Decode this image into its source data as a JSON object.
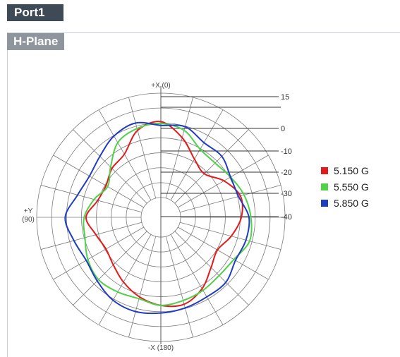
{
  "port_label": "Port1",
  "plane_label": "H-Plane",
  "chart_data": {
    "type": "polar",
    "angle_labels": {
      "top": "+X (0)",
      "left_line1": "+Y",
      "left_line2": "(90)",
      "bottom": "-X (180)"
    },
    "radial_ticks": [
      "15",
      "0",
      "-10",
      "-20",
      "-30",
      "-40"
    ],
    "radial_tick_values": [
      15,
      0,
      -10,
      -20,
      -30,
      -40
    ],
    "rlim": [
      -40,
      15
    ],
    "radial_axis": "gain_db",
    "grid": true,
    "legend_position": "right",
    "angles_deg": [
      0,
      15,
      30,
      45,
      60,
      75,
      90,
      105,
      120,
      135,
      150,
      165,
      180,
      195,
      210,
      225,
      240,
      255,
      270,
      285,
      300,
      315,
      330,
      345
    ],
    "series": [
      {
        "name": "5.150 G",
        "color": "#e31a1c",
        "values": [
          0,
          -3,
          -12,
          -14,
          -17,
          -16,
          -11,
          -15,
          -17,
          -15,
          -11,
          -7,
          -4,
          -3,
          -7,
          -13,
          -16,
          -12,
          -8,
          -7,
          -12,
          -18,
          -15,
          -7
        ]
      },
      {
        "name": "5.550 G",
        "color": "#4fd14a",
        "values": [
          -1,
          -2,
          -5,
          -13,
          -18,
          -14,
          -10,
          -9,
          -6,
          -4,
          -5,
          -6,
          -4,
          -5,
          -6,
          -7,
          -6,
          -2,
          -3,
          -5,
          -8,
          -10,
          -9,
          -3
        ]
      },
      {
        "name": "5.850 G",
        "color": "#1f3cc4",
        "values": [
          -2,
          1,
          -1,
          -5,
          -7,
          -5,
          0,
          -3,
          -5,
          -3,
          0,
          1,
          0,
          -1,
          -2,
          -2,
          -5,
          -4,
          -4,
          -8,
          -8,
          -5,
          -5,
          -1
        ]
      }
    ]
  }
}
